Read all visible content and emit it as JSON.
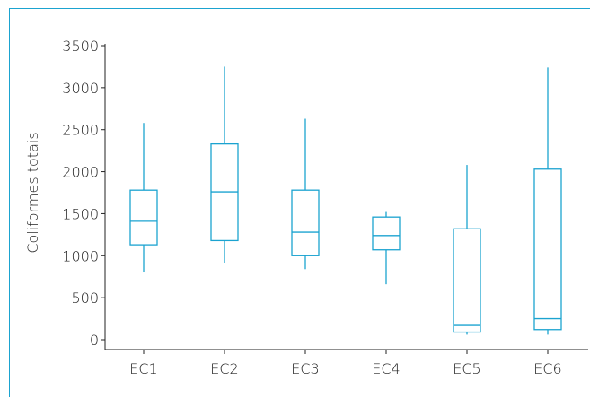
{
  "chart_data": {
    "type": "box",
    "title": "",
    "xlabel": "",
    "ylabel": "Coliformes totais",
    "ylim": [
      0,
      3500
    ],
    "yticks": [
      0,
      500,
      1000,
      1500,
      2000,
      2500,
      3000,
      3500
    ],
    "ytick_labels": [
      "0",
      "500",
      "1000",
      "1500",
      "2000",
      "2500",
      "3000",
      "3500"
    ],
    "grid": false,
    "legend": "none",
    "categories": [
      "EC1",
      "EC2",
      "EC3",
      "EC4",
      "EC5",
      "EC6"
    ],
    "boxes": [
      {
        "category": "EC1",
        "min": 800,
        "q1": 1130,
        "median": 1410,
        "q3": 1780,
        "max": 2580
      },
      {
        "category": "EC2",
        "min": 910,
        "q1": 1180,
        "median": 1760,
        "q3": 2330,
        "max": 3250
      },
      {
        "category": "EC3",
        "min": 840,
        "q1": 1000,
        "median": 1280,
        "q3": 1780,
        "max": 2630
      },
      {
        "category": "EC4",
        "min": 660,
        "q1": 1070,
        "median": 1240,
        "q3": 1460,
        "max": 1520
      },
      {
        "category": "EC5",
        "min": 60,
        "q1": 90,
        "median": 170,
        "q3": 1320,
        "max": 2080
      },
      {
        "category": "EC6",
        "min": 60,
        "q1": 120,
        "median": 250,
        "q3": 2030,
        "max": 3240
      }
    ],
    "colors": {
      "box": "#1ba3d0",
      "axis": "#222222",
      "frame": "#1ba3d0",
      "text": "#222222"
    }
  }
}
